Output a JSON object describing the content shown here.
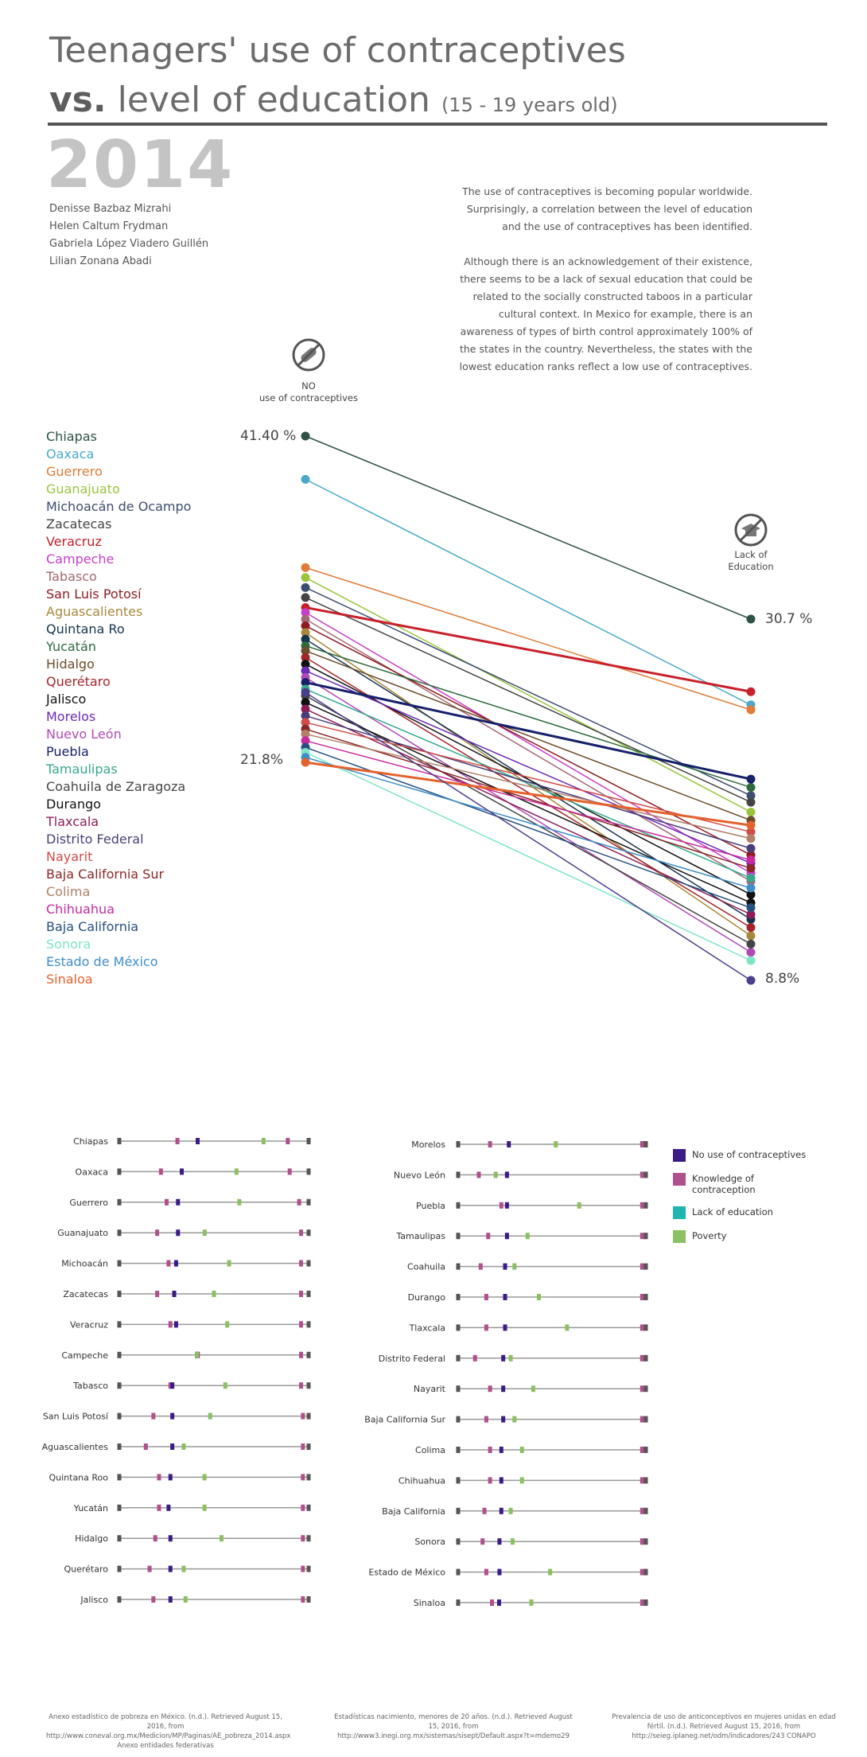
{
  "header": {
    "title_line1": "Teenagers' use of contraceptives",
    "title_vs": "vs.",
    "title_line2": "level of education",
    "title_age": "(15 - 19 years old)",
    "year": "2014"
  },
  "authors": [
    "Denisse Bazbaz Mizrahi",
    "Helen Caltum Frydman",
    "Gabriela López Viadero Guillén",
    "Lilian Zonana Abadi"
  ],
  "intro": {
    "paragraph1": "The use of contraceptives is becoming popular worldwide. Surprisingly, a correlation between the level of education and the use of contraceptives has been identified.",
    "paragraph2": "Although there is an acknowledgement of their existence, there seems to be a lack of sexual education that could be related to the socially constructed taboos in a particular cultural context. In Mexico for example, there is an awareness of types of birth control approximately 100% of the states in the country. Nevertheless, the states with the lowest education ranks reflect a low use of contraceptives."
  },
  "slope_chart": {
    "left_icon_label_1": "NO",
    "left_icon_label_2": "use of contraceptives",
    "right_icon_label_1": "Lack of",
    "right_icon_label_2": "Education",
    "left_top_label": "41.40 %",
    "left_bottom_label": "21.8%",
    "right_top_label": "30.7 %",
    "right_bottom_label": "8.8%"
  },
  "chart_data": [
    {
      "type": "line",
      "variant": "slope",
      "x": [
        "No use of contraceptives",
        "Lack of education"
      ],
      "ylim_left": [
        21.8,
        41.4
      ],
      "ylim_right": [
        8.8,
        30.7
      ],
      "series": [
        {
          "name": "Chiapas",
          "color": "#2f5148",
          "values": [
            41.4,
            30.7
          ]
        },
        {
          "name": "Oaxaca",
          "color": "#4aa9c8",
          "values": [
            38.8,
            25.5
          ]
        },
        {
          "name": "Guerrero",
          "color": "#e07b39",
          "values": [
            33.5,
            25.2
          ]
        },
        {
          "name": "Guanajuato",
          "color": "#9bc53d",
          "values": [
            32.9,
            19.0
          ]
        },
        {
          "name": "Michoacán de Ocampo",
          "color": "#3f4d6f",
          "values": [
            32.3,
            20.0
          ]
        },
        {
          "name": "Zacatecas",
          "color": "#444444",
          "values": [
            31.7,
            19.6
          ]
        },
        {
          "name": "Veracruz",
          "color": "#c8202a",
          "values": [
            31.1,
            26.3
          ]
        },
        {
          "name": "Campeche",
          "color": "#c63fc9",
          "values": [
            30.8,
            15.3
          ]
        },
        {
          "name": "Tabasco",
          "color": "#a26a74",
          "values": [
            30.4,
            14.8
          ]
        },
        {
          "name": "San Luis Potosí",
          "color": "#8e1b24",
          "values": [
            30.0,
            16.4
          ]
        },
        {
          "name": "Aguascalientes",
          "color": "#a7883b",
          "values": [
            29.6,
            11.5
          ]
        },
        {
          "name": "Quintana Ro",
          "color": "#17334d",
          "values": [
            29.2,
            12.5
          ]
        },
        {
          "name": "Yucatán",
          "color": "#2e6a3e",
          "values": [
            28.8,
            20.5
          ]
        },
        {
          "name": "Hidalgo",
          "color": "#6b4c2b",
          "values": [
            28.5,
            18.5
          ]
        },
        {
          "name": "Querétaro",
          "color": "#a3252a",
          "values": [
            28.1,
            12.0
          ]
        },
        {
          "name": "Jalisco",
          "color": "#111111",
          "values": [
            27.7,
            14.0
          ]
        },
        {
          "name": "Morelos",
          "color": "#6a2bb5",
          "values": [
            27.3,
            15.9
          ]
        },
        {
          "name": "Nuevo León",
          "color": "#b04bb4",
          "values": [
            26.9,
            10.5
          ]
        },
        {
          "name": "Puebla",
          "color": "#17206b",
          "values": [
            26.6,
            21.0
          ]
        },
        {
          "name": "Tamaulipas",
          "color": "#36a98c",
          "values": [
            26.2,
            15.0
          ]
        },
        {
          "name": "Coahuila de Zaragoza",
          "color": "#454545",
          "values": [
            25.8,
            11.0
          ]
        },
        {
          "name": "Durango",
          "color": "#111111",
          "values": [
            25.4,
            13.5
          ]
        },
        {
          "name": "Tlaxcala",
          "color": "#8e1d57",
          "values": [
            25.0,
            12.8
          ]
        },
        {
          "name": "Distrito Federal",
          "color": "#4b3e78",
          "values": [
            24.6,
            16.8
          ]
        },
        {
          "name": "Nayarit",
          "color": "#d14b47",
          "values": [
            24.2,
            17.8
          ]
        },
        {
          "name": "Baja California Sur",
          "color": "#8a2727",
          "values": [
            23.8,
            15.6
          ]
        },
        {
          "name": "Colima",
          "color": "#b27f6a",
          "values": [
            23.5,
            17.4
          ]
        },
        {
          "name": "Chihuahua",
          "color": "#c8299e",
          "values": [
            23.1,
            16.1
          ]
        },
        {
          "name": "Baja California",
          "color": "#284f80",
          "values": [
            22.7,
            13.2
          ]
        },
        {
          "name": "Sonora",
          "color": "#7ee6c7",
          "values": [
            22.4,
            10.0
          ]
        },
        {
          "name": "Estado de México",
          "color": "#3f8ec8",
          "values": [
            22.1,
            14.4
          ]
        },
        {
          "name": "Sinaloa",
          "color": "#e4622e",
          "values": [
            21.8,
            18.2
          ]
        }
      ],
      "highlight": [
        {
          "name": "Chiapas-Edu2",
          "color": "#4b3d8c",
          "values": [
            26.0,
            8.8
          ]
        }
      ]
    },
    {
      "type": "scatter",
      "variant": "dot-strip",
      "xlim": [
        0,
        100
      ],
      "legend": {
        "no_use": "No use of contraceptives",
        "knowledge": "Knowledge of contraception",
        "lack_edu": "Lack of education",
        "poverty": "Poverty"
      },
      "colors": {
        "no_use": "#3b1b86",
        "knowledge": "#b0508d",
        "lack_edu": "#1fb6b0",
        "poverty": "#8cc063"
      },
      "rows_left": [
        {
          "state": "Chiapas",
          "no_use": 41.4,
          "knowledge": 30.7,
          "lack_edu": 30.5,
          "poverty": 76.2,
          "extra": 89.0
        },
        {
          "state": "Oaxaca",
          "no_use": 33.0,
          "knowledge": 22.0,
          "lack_edu": 22.0,
          "poverty": 61.9,
          "extra": 90.0
        },
        {
          "state": "Guerrero",
          "no_use": 31.0,
          "knowledge": 25.0,
          "lack_edu": 24.5,
          "poverty": 63.4,
          "extra": 95.0
        },
        {
          "state": "Guanajuato",
          "no_use": 31.0,
          "knowledge": 20.0,
          "lack_edu": 19.0,
          "poverty": 45.1,
          "extra": 96.0
        },
        {
          "state": "Michoacán",
          "no_use": 30.0,
          "knowledge": 26.0,
          "lack_edu": 26.0,
          "poverty": 58.0,
          "extra": 96.0
        },
        {
          "state": "Zacatecas",
          "no_use": 29.0,
          "knowledge": 20.0,
          "lack_edu": 19.5,
          "poverty": 50.0,
          "extra": 96.0
        },
        {
          "state": "Veracruz",
          "no_use": 30.0,
          "knowledge": 27.0,
          "lack_edu": 27.0,
          "poverty": 57.0,
          "extra": 96.0
        },
        {
          "state": "Campeche",
          "no_use": 41.0,
          "knowledge": 41.5,
          "lack_edu": 42.0,
          "poverty": 41.0,
          "extra": 96.0
        },
        {
          "state": "Tabasco",
          "no_use": 28.0,
          "knowledge": 27.0,
          "lack_edu": 26.5,
          "poverty": 56.0,
          "extra": 96.0
        },
        {
          "state": "San Luis Potosí",
          "no_use": 28.0,
          "knowledge": 18.0,
          "lack_edu": 17.5,
          "poverty": 48.0,
          "extra": 97.0
        },
        {
          "state": "Aguascalientes",
          "no_use": 28.0,
          "knowledge": 14.0,
          "lack_edu": 14.0,
          "poverty": 34.0,
          "extra": 97.0
        },
        {
          "state": "Quintana Roo",
          "no_use": 27.0,
          "knowledge": 21.0,
          "lack_edu": 21.0,
          "poverty": 45.0,
          "extra": 97.0
        },
        {
          "state": "Yucatán",
          "no_use": 26.0,
          "knowledge": 21.0,
          "lack_edu": 21.0,
          "poverty": 45.0,
          "extra": 97.0
        },
        {
          "state": "Hidalgo",
          "no_use": 27.0,
          "knowledge": 19.0,
          "lack_edu": 18.5,
          "poverty": 54.0,
          "extra": 97.0
        },
        {
          "state": "Querétaro",
          "no_use": 27.0,
          "knowledge": 16.0,
          "lack_edu": 15.5,
          "poverty": 34.0,
          "extra": 97.0
        },
        {
          "state": "Jalisco",
          "no_use": 27.0,
          "knowledge": 18.0,
          "lack_edu": 17.5,
          "poverty": 35.0,
          "extra": 97.0
        }
      ],
      "rows_right": [
        {
          "state": "Morelos",
          "no_use": 27.0,
          "knowledge": 17.0,
          "lack_edu": 16.5,
          "poverty": 52.0,
          "extra": 98.0
        },
        {
          "state": "Nuevo León",
          "no_use": 26.0,
          "knowledge": 11.0,
          "lack_edu": 11.0,
          "poverty": 20.0,
          "extra": 98.0
        },
        {
          "state": "Puebla",
          "no_use": 26.0,
          "knowledge": 23.0,
          "lack_edu": 22.5,
          "poverty": 64.5,
          "extra": 98.0
        },
        {
          "state": "Tamaulipas",
          "no_use": 26.0,
          "knowledge": 16.0,
          "lack_edu": 15.5,
          "poverty": 37.0,
          "extra": 98.0
        },
        {
          "state": "Coahuila",
          "no_use": 25.0,
          "knowledge": 12.0,
          "lack_edu": 12.0,
          "poverty": 30.0,
          "extra": 98.0
        },
        {
          "state": "Durango",
          "no_use": 25.0,
          "knowledge": 15.0,
          "lack_edu": 14.5,
          "poverty": 43.0,
          "extra": 98.0
        },
        {
          "state": "Tlaxcala",
          "no_use": 25.0,
          "knowledge": 15.0,
          "lack_edu": 14.5,
          "poverty": 58.0,
          "extra": 98.0
        },
        {
          "state": "Distrito Federal",
          "no_use": 24.0,
          "knowledge": 9.0,
          "lack_edu": 9.0,
          "poverty": 28.0,
          "extra": 98.0
        },
        {
          "state": "Nayarit",
          "no_use": 24.0,
          "knowledge": 17.0,
          "lack_edu": 16.5,
          "poverty": 40.0,
          "extra": 98.0
        },
        {
          "state": "Baja California Sur",
          "no_use": 24.0,
          "knowledge": 15.0,
          "lack_edu": 15.0,
          "poverty": 30.0,
          "extra": 98.0
        },
        {
          "state": "Colima",
          "no_use": 23.0,
          "knowledge": 17.0,
          "lack_edu": 16.5,
          "poverty": 34.0,
          "extra": 98.0
        },
        {
          "state": "Chihuahua",
          "no_use": 23.0,
          "knowledge": 17.0,
          "lack_edu": 16.5,
          "poverty": 34.0,
          "extra": 98.0
        },
        {
          "state": "Baja California",
          "no_use": 23.0,
          "knowledge": 14.0,
          "lack_edu": 13.5,
          "poverty": 28.0,
          "extra": 98.0
        },
        {
          "state": "Sonora",
          "no_use": 22.0,
          "knowledge": 13.0,
          "lack_edu": 13.0,
          "poverty": 29.0,
          "extra": 98.0
        },
        {
          "state": "Estado de México",
          "no_use": 22.0,
          "knowledge": 15.0,
          "lack_edu": 15.0,
          "poverty": 49.0,
          "extra": 98.0
        },
        {
          "state": "Sinaloa",
          "no_use": 21.8,
          "knowledge": 18.0,
          "lack_edu": 18.0,
          "poverty": 39.0,
          "extra": 98.0
        }
      ]
    }
  ],
  "legend": {
    "no_use": "No use of contraceptives",
    "knowledge": "Knowledge of contraception",
    "lack_edu": "Lack of education",
    "poverty": "Poverty"
  },
  "sources": [
    "Anexo estadístico de pobreza en México. (n.d.). Retrieved August 15, 2016, from http://www.coneval.org.mx/Medicion/MP/Paginas/AE_pobreza_2014.aspx Anexo entidades federativas",
    "Estadísticas nacimiento, menores de 20 años. (n.d.). Retrieved August 15, 2016, from http://www3.inegi.org.mx/sistemas/sisept/Default.aspx?t=mdemo29",
    "Prevalencia de uso de anticonceptivos en mujeres unidas en edad fértil. (n.d.). Retrieved August 15, 2016, from http://seieg.iplaneg.net/odm/indicadores/243 CONAPO"
  ]
}
